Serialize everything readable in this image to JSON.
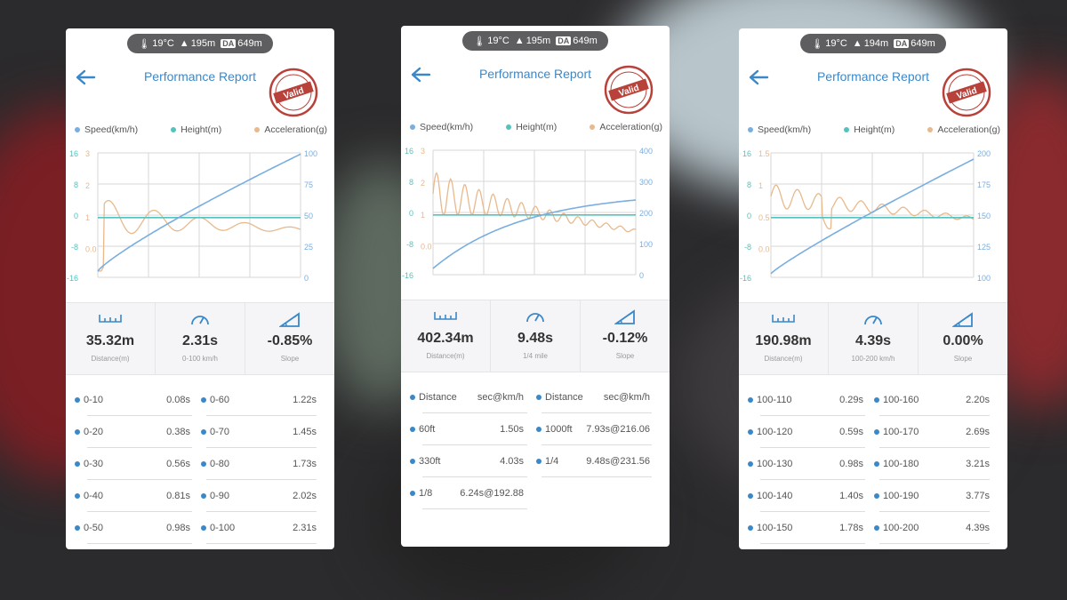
{
  "colors": {
    "speed": "#79aee0",
    "height": "#56c2bd",
    "accel": "#e8b98c",
    "title": "#3b88c9",
    "stamp": "#b8413a"
  },
  "cards": [
    {
      "weather": {
        "temp": "19°C",
        "altitude": "195m",
        "da_label": "DA",
        "density_alt": "649m"
      },
      "title": "Performance Report",
      "stamp_text": "Valid",
      "legend": {
        "speed": "Speed(km/h)",
        "height": "Height(m)",
        "accel": "Acceleration(g)"
      },
      "axes": {
        "left_height": [
          "16",
          "8",
          "0",
          "-8",
          "-16"
        ],
        "left_accel": [
          "3",
          "2",
          "1",
          "0.0"
        ],
        "right_speed": [
          "100",
          "75",
          "50",
          "25",
          "0"
        ]
      },
      "stats": [
        {
          "icon": "ruler-icon",
          "value": "35.32m",
          "label": "Distance(m)"
        },
        {
          "icon": "speedometer-icon",
          "value": "2.31s",
          "label": "0-100 km/h"
        },
        {
          "icon": "slope-icon",
          "value": "-0.85%",
          "label": "Slope"
        }
      ],
      "rows": [
        [
          {
            "k": "0-10",
            "v": "0.08s"
          },
          {
            "k": "0-60",
            "v": "1.22s"
          }
        ],
        [
          {
            "k": "0-20",
            "v": "0.38s"
          },
          {
            "k": "0-70",
            "v": "1.45s"
          }
        ],
        [
          {
            "k": "0-30",
            "v": "0.56s"
          },
          {
            "k": "0-80",
            "v": "1.73s"
          }
        ],
        [
          {
            "k": "0-40",
            "v": "0.81s"
          },
          {
            "k": "0-90",
            "v": "2.02s"
          }
        ],
        [
          {
            "k": "0-50",
            "v": "0.98s"
          },
          {
            "k": "0-100",
            "v": "2.31s"
          }
        ]
      ]
    },
    {
      "weather": {
        "temp": "19°C",
        "altitude": "195m",
        "da_label": "DA",
        "density_alt": "649m"
      },
      "title": "Performance Report",
      "stamp_text": "Valid",
      "legend": {
        "speed": "Speed(km/h)",
        "height": "Height(m)",
        "accel": "Acceleration(g)"
      },
      "axes": {
        "left_height": [
          "16",
          "8",
          "0",
          "-8",
          "-16"
        ],
        "left_accel": [
          "3",
          "2",
          "1",
          "0.0"
        ],
        "right_speed": [
          "400",
          "300",
          "200",
          "100",
          "0"
        ]
      },
      "stats": [
        {
          "icon": "ruler-icon",
          "value": "402.34m",
          "label": "Distance(m)"
        },
        {
          "icon": "speedometer-icon",
          "value": "9.48s",
          "label": "1/4 mile"
        },
        {
          "icon": "slope-icon",
          "value": "-0.12%",
          "label": "Slope"
        }
      ],
      "rows": [
        [
          {
            "k": "Distance",
            "v": "sec@km/h"
          },
          {
            "k": "Distance",
            "v": "sec@km/h"
          }
        ],
        [
          {
            "k": "60ft",
            "v": "1.50s"
          },
          {
            "k": "1000ft",
            "v": "7.93s@216.06"
          }
        ],
        [
          {
            "k": "330ft",
            "v": "4.03s"
          },
          {
            "k": "1/4",
            "v": "9.48s@231.56"
          }
        ],
        [
          {
            "k": "1/8",
            "v": "6.24s@192.88"
          }
        ]
      ]
    },
    {
      "weather": {
        "temp": "19°C",
        "altitude": "194m",
        "da_label": "DA",
        "density_alt": "649m"
      },
      "title": "Performance Report",
      "stamp_text": "Valid",
      "legend": {
        "speed": "Speed(km/h)",
        "height": "Height(m)",
        "accel": "Acceleration(g)"
      },
      "axes": {
        "left_height": [
          "16",
          "8",
          "0",
          "-8",
          "-16"
        ],
        "left_accel": [
          "1.5",
          "1",
          "0.5",
          "0.0"
        ],
        "right_speed": [
          "200",
          "175",
          "150",
          "125",
          "100"
        ]
      },
      "stats": [
        {
          "icon": "ruler-icon",
          "value": "190.98m",
          "label": "Distance(m)"
        },
        {
          "icon": "speedometer-icon",
          "value": "4.39s",
          "label": "100-200 km/h"
        },
        {
          "icon": "slope-icon",
          "value": "0.00%",
          "label": "Slope"
        }
      ],
      "rows": [
        [
          {
            "k": "100-110",
            "v": "0.29s"
          },
          {
            "k": "100-160",
            "v": "2.20s"
          }
        ],
        [
          {
            "k": "100-120",
            "v": "0.59s"
          },
          {
            "k": "100-170",
            "v": "2.69s"
          }
        ],
        [
          {
            "k": "100-130",
            "v": "0.98s"
          },
          {
            "k": "100-180",
            "v": "3.21s"
          }
        ],
        [
          {
            "k": "100-140",
            "v": "1.40s"
          },
          {
            "k": "100-190",
            "v": "3.77s"
          }
        ],
        [
          {
            "k": "100-150",
            "v": "1.78s"
          },
          {
            "k": "100-200",
            "v": "4.39s"
          }
        ]
      ]
    }
  ]
}
